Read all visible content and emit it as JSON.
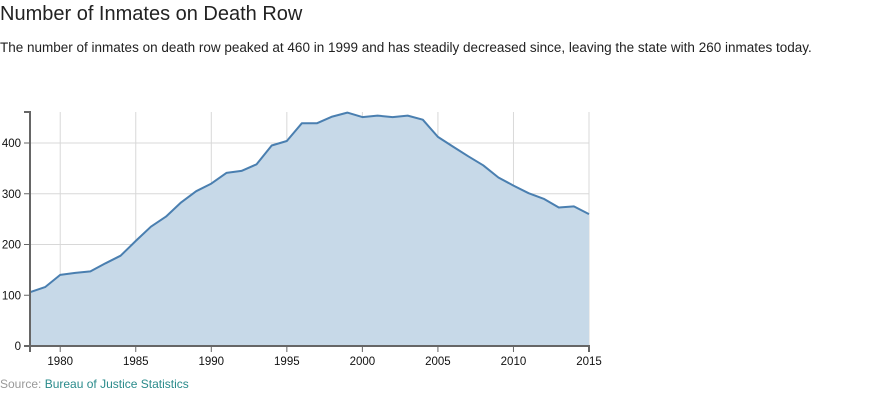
{
  "header": {
    "title": "Number of Inmates on Death Row",
    "description": "The number of inmates on death row peaked at 460 in 1999 and has steadily decreased since, leaving the state with 260 inmates today."
  },
  "source": {
    "label": "Source:",
    "link_text": "Bureau of Justice Statistics"
  },
  "colors": {
    "line": "#4a7fb0",
    "fill": "#c7d9e8",
    "grid": "#d8d8d8",
    "axis": "#666666",
    "link": "#2a8b8b"
  },
  "chart_data": {
    "type": "area",
    "title": "Number of Inmates on Death Row",
    "xlabel": "",
    "ylabel": "",
    "xlim": [
      1978,
      2015
    ],
    "ylim": [
      0,
      460
    ],
    "grid": true,
    "x_ticks": [
      "1980",
      "1985",
      "1990",
      "1995",
      "2000",
      "2005",
      "2010",
      "2015"
    ],
    "y_ticks": [
      "0",
      "100",
      "200",
      "300",
      "400"
    ],
    "x": [
      1978,
      1979,
      1980,
      1981,
      1982,
      1983,
      1984,
      1985,
      1986,
      1987,
      1988,
      1989,
      1990,
      1991,
      1992,
      1993,
      1994,
      1995,
      1996,
      1997,
      1998,
      1999,
      2000,
      2001,
      2002,
      2003,
      2004,
      2005,
      2006,
      2007,
      2008,
      2009,
      2010,
      2011,
      2012,
      2013,
      2014,
      2015
    ],
    "values": [
      106,
      116,
      140,
      144,
      147,
      163,
      178,
      207,
      235,
      255,
      283,
      305,
      320,
      341,
      345,
      358,
      395,
      404,
      439,
      439,
      452,
      460,
      451,
      454,
      451,
      454,
      446,
      412,
      393,
      374,
      356,
      332,
      316,
      301,
      290,
      273,
      275,
      260
    ]
  }
}
